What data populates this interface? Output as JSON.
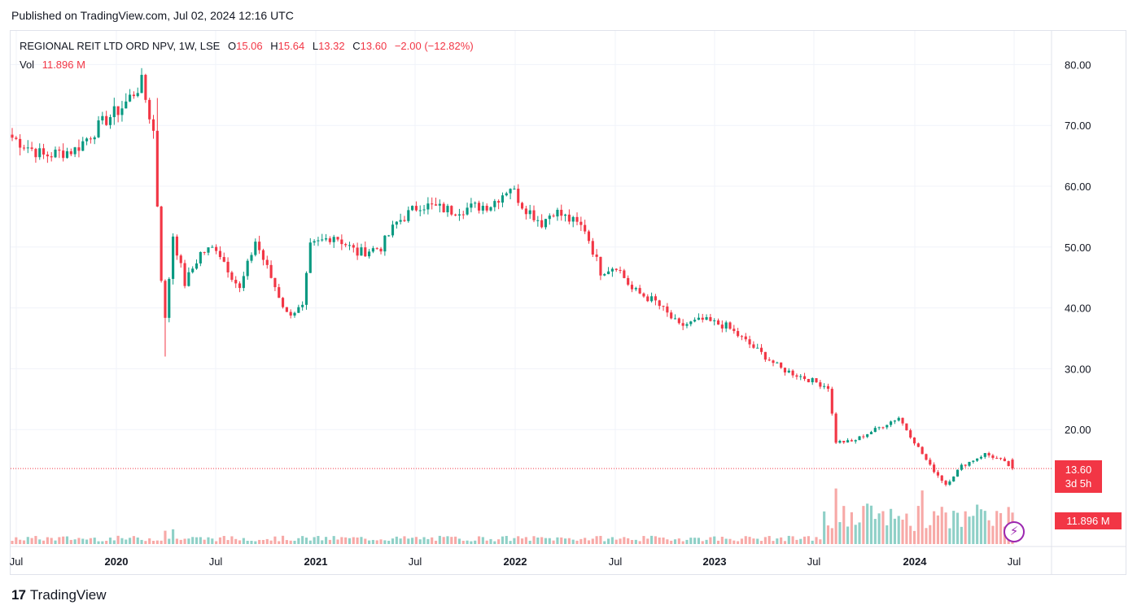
{
  "header": {
    "published": "Published on TradingView.com, Jul 02, 2024 12:16 UTC"
  },
  "legend": {
    "symbol": "REGIONAL REIT LTD ORD NPV, 1W, LSE",
    "open_label": "O",
    "open": "15.06",
    "high_label": "H",
    "high": "15.64",
    "low_label": "L",
    "low": "13.32",
    "close_label": "C",
    "close": "13.60",
    "change": "−2.00 (−12.82%)",
    "vol_label": "Vol",
    "vol": "11.896 M"
  },
  "price_tag": {
    "price": "13.60",
    "countdown": "3d 5h"
  },
  "vol_tag": "11.896 M",
  "flash_icon": "⚡",
  "footer": {
    "logo_mark": "17",
    "brand": "TradingView"
  },
  "colors": {
    "up": "#089981",
    "down": "#f23645",
    "up_vol": "#8fd0c7",
    "down_vol": "#f7a9a7",
    "grid": "#f0f3fa",
    "text": "#131722"
  },
  "chart_data": {
    "type": "candlestick",
    "interval": "1W",
    "y_axis": {
      "ticks": [
        20,
        30,
        40,
        50,
        60,
        70,
        80
      ],
      "tick_labels": [
        "20.00",
        "30.00",
        "40.00",
        "50.00",
        "60.00",
        "70.00",
        "80.00"
      ],
      "side": "right"
    },
    "x_axis": {
      "labels": [
        "Jul",
        "2020",
        "Jul",
        "2021",
        "Jul",
        "2022",
        "Jul",
        "2023",
        "Jul",
        "2024",
        "Jul"
      ],
      "bold": [
        false,
        true,
        false,
        true,
        false,
        true,
        false,
        true,
        false,
        true,
        false
      ]
    },
    "last_price": 13.6,
    "keyframes": [
      {
        "w": 0,
        "p": 68
      },
      {
        "w": 8,
        "p": 65
      },
      {
        "w": 16,
        "p": 66
      },
      {
        "w": 24,
        "p": 71
      },
      {
        "w": 28,
        "p": 73
      },
      {
        "w": 33,
        "p": 77
      },
      {
        "w": 36,
        "p": 69
      },
      {
        "w": 38,
        "p": 45
      },
      {
        "w": 39,
        "p": 38
      },
      {
        "w": 41,
        "p": 52
      },
      {
        "w": 44,
        "p": 44
      },
      {
        "w": 48,
        "p": 49
      },
      {
        "w": 52,
        "p": 50
      },
      {
        "w": 58,
        "p": 43
      },
      {
        "w": 62,
        "p": 51
      },
      {
        "w": 66,
        "p": 45
      },
      {
        "w": 70,
        "p": 39
      },
      {
        "w": 74,
        "p": 40
      },
      {
        "w": 76,
        "p": 50
      },
      {
        "w": 82,
        "p": 52
      },
      {
        "w": 88,
        "p": 49
      },
      {
        "w": 94,
        "p": 50
      },
      {
        "w": 98,
        "p": 54
      },
      {
        "w": 104,
        "p": 57
      },
      {
        "w": 112,
        "p": 56
      },
      {
        "w": 122,
        "p": 57
      },
      {
        "w": 127,
        "p": 60
      },
      {
        "w": 130,
        "p": 57
      },
      {
        "w": 135,
        "p": 54
      },
      {
        "w": 138,
        "p": 56
      },
      {
        "w": 146,
        "p": 53
      },
      {
        "w": 150,
        "p": 46
      },
      {
        "w": 154,
        "p": 47
      },
      {
        "w": 158,
        "p": 43
      },
      {
        "w": 164,
        "p": 41
      },
      {
        "w": 170,
        "p": 37
      },
      {
        "w": 176,
        "p": 38
      },
      {
        "w": 182,
        "p": 37
      },
      {
        "w": 186,
        "p": 35
      },
      {
        "w": 196,
        "p": 30
      },
      {
        "w": 204,
        "p": 28
      },
      {
        "w": 208,
        "p": 27
      },
      {
        "w": 210,
        "p": 18
      },
      {
        "w": 214,
        "p": 18
      },
      {
        "w": 220,
        "p": 20
      },
      {
        "w": 226,
        "p": 22
      },
      {
        "w": 230,
        "p": 18
      },
      {
        "w": 234,
        "p": 14
      },
      {
        "w": 238,
        "p": 11
      },
      {
        "w": 242,
        "p": 14
      },
      {
        "w": 248,
        "p": 16
      },
      {
        "w": 252,
        "p": 15
      },
      {
        "w": 255,
        "p": 13.6
      }
    ],
    "weeks": 256,
    "last_candle": {
      "open": 15.06,
      "high": 15.64,
      "low": 13.32,
      "close": 13.6
    }
  }
}
